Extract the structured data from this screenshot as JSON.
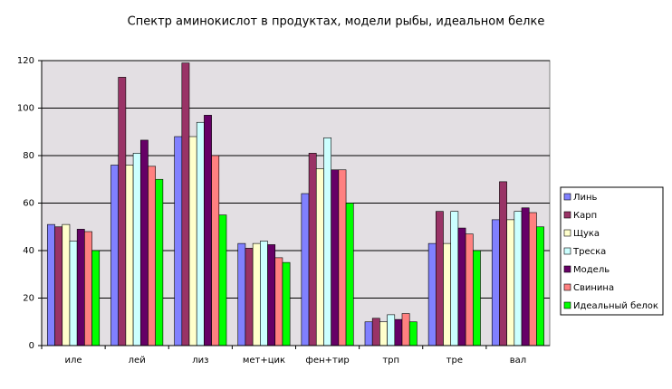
{
  "chart_data": {
    "type": "bar",
    "title": "Спектр аминокислот в продуктах, модели рыбы, идеальном белке",
    "categories": [
      "иле",
      "лей",
      "лиз",
      "мет+цик",
      "фен+тир",
      "трп",
      "тре",
      "вал"
    ],
    "series": [
      {
        "name": "Линь",
        "color": "#8080ff",
        "values": [
          51,
          76,
          88,
          43,
          64,
          10,
          43,
          53
        ]
      },
      {
        "name": "Карп",
        "color": "#993366",
        "values": [
          50,
          113,
          119,
          41,
          81,
          11.5,
          56.5,
          69
        ]
      },
      {
        "name": "Щука",
        "color": "#ffffcc",
        "values": [
          51,
          76,
          88,
          43,
          74.5,
          10,
          43,
          53
        ]
      },
      {
        "name": "Треска",
        "color": "#ccffff",
        "values": [
          44,
          81,
          94,
          44,
          87.5,
          13,
          56.5,
          56.5
        ]
      },
      {
        "name": "Модель",
        "color": "#660066",
        "values": [
          49,
          86.5,
          97,
          42.5,
          74,
          11,
          49.5,
          58
        ]
      },
      {
        "name": "Свинина",
        "color": "#ff8080",
        "values": [
          48,
          75.5,
          80,
          37,
          74,
          13.5,
          47,
          56
        ]
      },
      {
        "name": "Идеальный белок",
        "color": "#00ff00",
        "values": [
          40,
          70,
          55,
          35,
          60,
          10,
          40,
          50
        ]
      }
    ],
    "ylim": [
      0,
      120
    ],
    "yticks": [
      0,
      20,
      40,
      60,
      80,
      100,
      120
    ],
    "grid": true,
    "legend": "right"
  }
}
